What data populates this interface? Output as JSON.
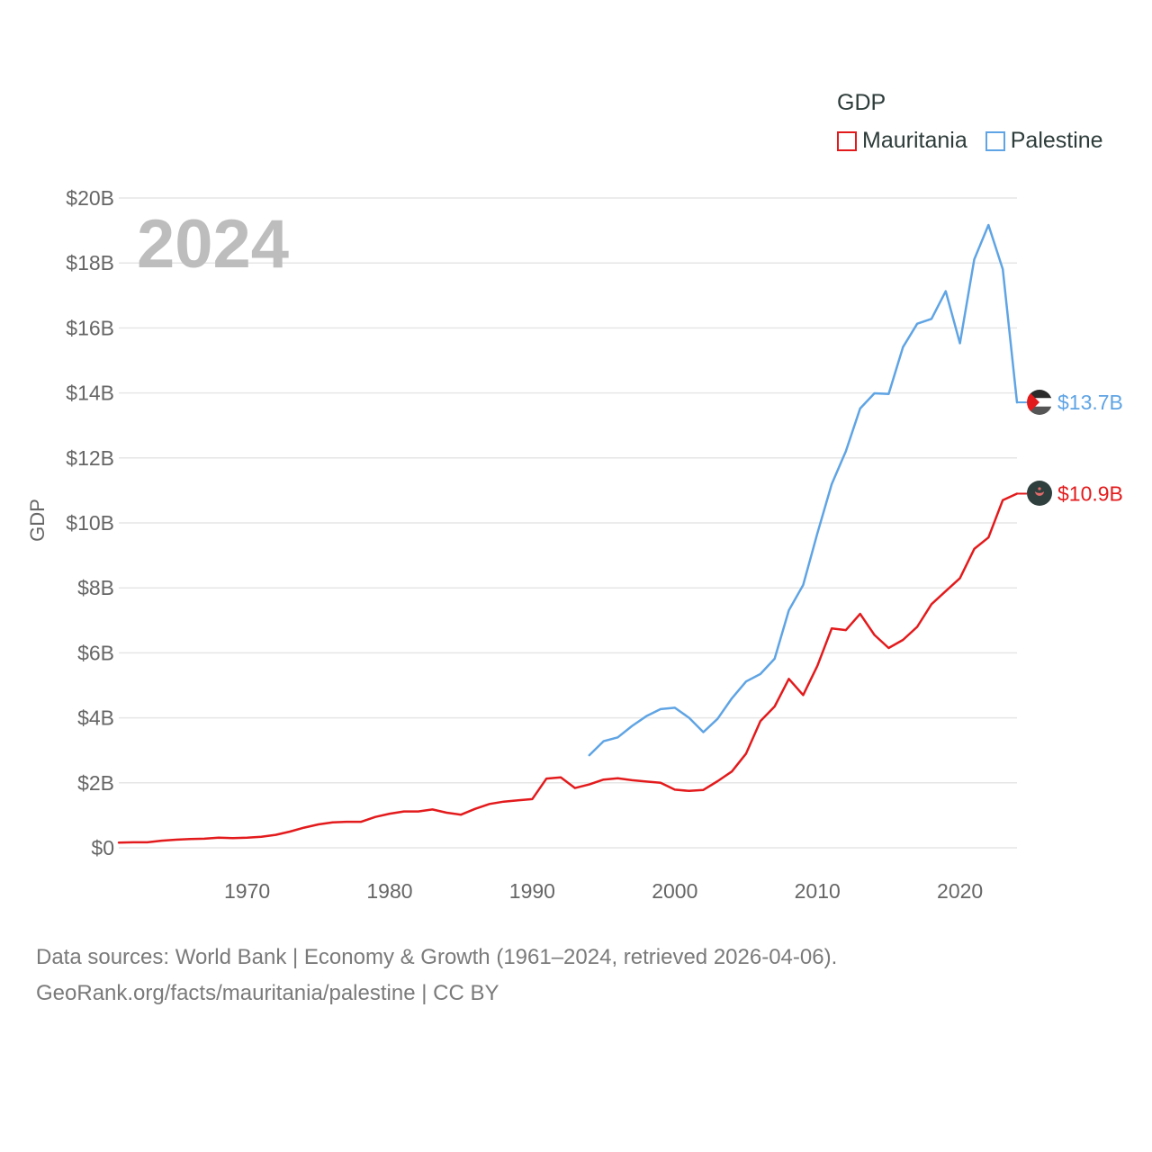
{
  "year_watermark": "2024",
  "legend": {
    "title": "GDP",
    "items": [
      {
        "label": "Mauritania",
        "color": "#e31a1c"
      },
      {
        "label": "Palestine",
        "color": "#5fa4e4"
      }
    ]
  },
  "source": {
    "line1": "Data sources: World Bank | Economy & Growth (1961–2024, retrieved 2026-04-06).",
    "line2": "GeoRank.org/facts/mauritania/palestine | CC BY"
  },
  "chart_data": {
    "type": "line",
    "title": "GDP",
    "xlabel": "",
    "ylabel": "GDP",
    "xlim": [
      1961,
      2024
    ],
    "ylim": [
      0,
      20
    ],
    "grid": true,
    "legend_position": "top-right",
    "x_ticks": [
      1970,
      1980,
      1990,
      2000,
      2010,
      2020
    ],
    "y_ticks": [
      0,
      2,
      4,
      6,
      8,
      10,
      12,
      14,
      16,
      18,
      20
    ],
    "y_tick_labels": [
      "$0",
      "$2B",
      "$4B",
      "$6B",
      "$8B",
      "$10B",
      "$12B",
      "$14B",
      "$16B",
      "$18B",
      "$20B"
    ],
    "series": [
      {
        "name": "Mauritania",
        "color": "#e31a1c",
        "unit": "USD billions",
        "end_label": "$10.9B",
        "x": [
          1961,
          1962,
          1963,
          1964,
          1965,
          1966,
          1967,
          1968,
          1969,
          1970,
          1971,
          1972,
          1973,
          1974,
          1975,
          1976,
          1977,
          1978,
          1979,
          1980,
          1981,
          1982,
          1983,
          1984,
          1985,
          1986,
          1987,
          1988,
          1989,
          1990,
          1991,
          1992,
          1993,
          1994,
          1995,
          1996,
          1997,
          1998,
          1999,
          2000,
          2001,
          2002,
          2003,
          2004,
          2005,
          2006,
          2007,
          2008,
          2009,
          2010,
          2011,
          2012,
          2013,
          2014,
          2015,
          2016,
          2017,
          2018,
          2019,
          2020,
          2021,
          2022,
          2023,
          2024
        ],
        "values": [
          0.16,
          0.17,
          0.17,
          0.22,
          0.25,
          0.27,
          0.28,
          0.31,
          0.3,
          0.31,
          0.34,
          0.4,
          0.5,
          0.62,
          0.72,
          0.78,
          0.8,
          0.8,
          0.95,
          1.05,
          1.12,
          1.12,
          1.18,
          1.08,
          1.02,
          1.2,
          1.35,
          1.42,
          1.46,
          1.5,
          2.13,
          2.17,
          1.84,
          1.95,
          2.1,
          2.14,
          2.08,
          2.04,
          2.0,
          1.79,
          1.75,
          1.78,
          2.05,
          2.35,
          2.9,
          3.9,
          4.35,
          5.2,
          4.7,
          5.6,
          6.75,
          6.7,
          7.2,
          6.55,
          6.15,
          6.4,
          6.8,
          7.5,
          7.9,
          8.3,
          9.2,
          9.55,
          10.7,
          10.9
        ]
      },
      {
        "name": "Palestine",
        "color": "#5fa4e4",
        "unit": "USD billions",
        "end_label": "$13.7B",
        "x": [
          1994,
          1995,
          1996,
          1997,
          1998,
          1999,
          2000,
          2001,
          2002,
          2003,
          2004,
          2005,
          2006,
          2007,
          2008,
          2009,
          2010,
          2011,
          2012,
          2013,
          2014,
          2015,
          2016,
          2017,
          2018,
          2019,
          2020,
          2021,
          2022,
          2023,
          2024
        ],
        "values": [
          2.85,
          3.28,
          3.4,
          3.75,
          4.05,
          4.27,
          4.31,
          4.0,
          3.56,
          3.97,
          4.6,
          5.12,
          5.35,
          5.82,
          7.31,
          8.09,
          9.68,
          11.19,
          12.21,
          13.52,
          13.99,
          13.97,
          15.41,
          16.13,
          16.28,
          17.13,
          15.53,
          18.11,
          19.17,
          17.81,
          13.71
        ]
      }
    ]
  }
}
